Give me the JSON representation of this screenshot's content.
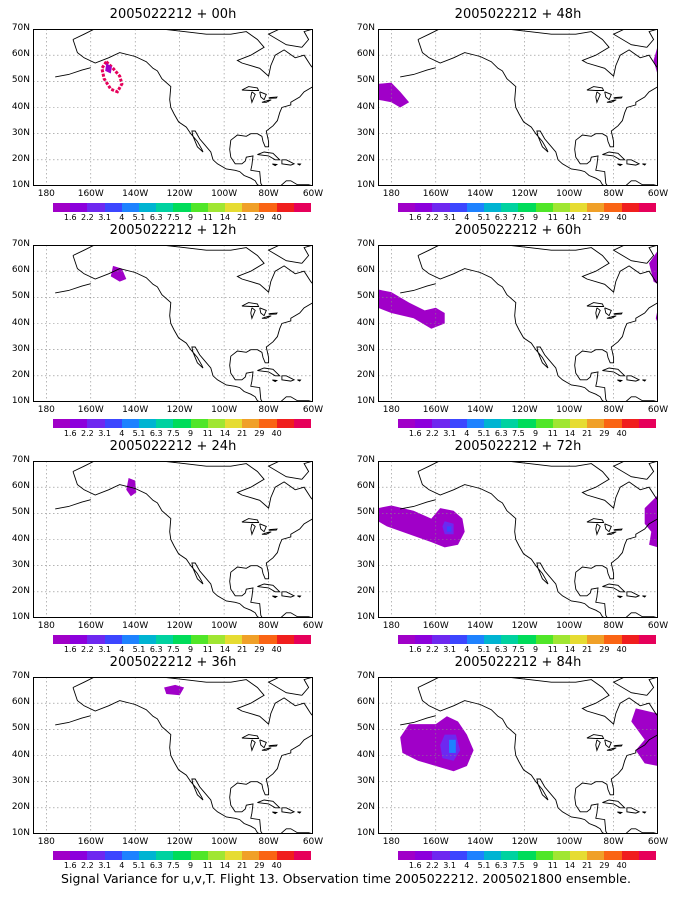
{
  "panels": [
    {
      "title": "2005022212 + 00h"
    },
    {
      "title": "2005022212 + 48h"
    },
    {
      "title": "2005022212 + 12h"
    },
    {
      "title": "2005022212 + 60h"
    },
    {
      "title": "2005022212 + 24h"
    },
    {
      "title": "2005022212 + 72h"
    },
    {
      "title": "2005022212 + 36h"
    },
    {
      "title": "2005022212 + 84h"
    }
  ],
  "axes": {
    "lat_labels": [
      "70N",
      "60N",
      "50N",
      "40N",
      "30N",
      "20N",
      "10N"
    ],
    "lon_labels": [
      "180",
      "160W",
      "140W",
      "120W",
      "100W",
      "80W",
      "60W"
    ]
  },
  "colorbar": {
    "labels": [
      "1.6",
      "2.2",
      "3.1",
      "4",
      "5.1",
      "6.3",
      "7.5",
      "9",
      "11",
      "14",
      "21",
      "29",
      "40"
    ],
    "colors": [
      "#a000c8",
      "#8c00dc",
      "#6e28f0",
      "#3c46ff",
      "#1e82ff",
      "#00b4d2",
      "#00d2a0",
      "#00dc5a",
      "#50e628",
      "#a0e632",
      "#e6dc32",
      "#f0a028",
      "#fa6414",
      "#f01e1e",
      "#e6005a"
    ]
  },
  "caption": "Signal Variance for u,v,T. Flight 13. Observation time 2005022212. 2005021800 ensemble."
}
